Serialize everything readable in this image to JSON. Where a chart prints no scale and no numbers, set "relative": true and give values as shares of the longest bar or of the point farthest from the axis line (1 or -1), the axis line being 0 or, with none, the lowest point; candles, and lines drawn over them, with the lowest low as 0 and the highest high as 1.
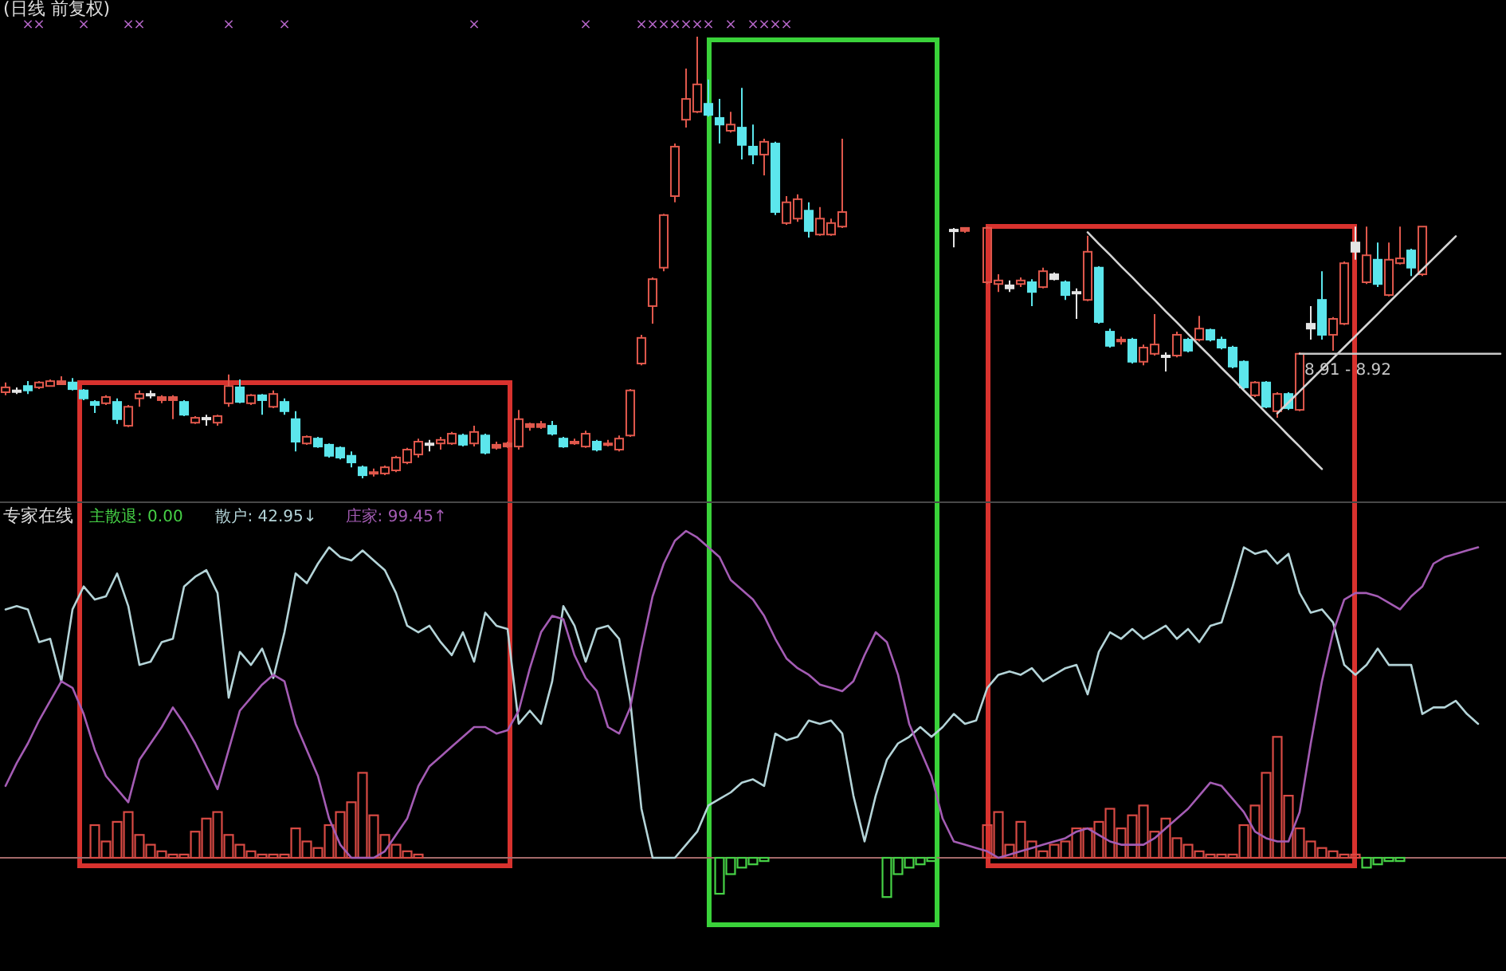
{
  "chart_data": [
    {
      "type": "candlestick",
      "title": "(日线 前复权)",
      "categories": [
        null,
        null,
        null,
        null,
        null,
        null,
        null,
        null,
        null,
        null,
        null,
        null,
        null,
        null,
        null,
        null,
        null,
        null,
        null,
        null,
        null,
        null,
        null,
        null,
        null,
        null,
        null,
        null,
        null,
        null,
        null,
        null,
        null,
        null,
        null,
        null,
        null,
        null,
        null,
        null,
        null,
        null,
        null,
        null,
        null,
        null,
        null,
        null,
        null,
        null,
        null,
        null,
        null,
        null,
        null,
        null,
        null,
        null,
        null,
        null,
        null,
        null,
        null,
        null,
        null,
        null,
        null,
        null,
        null,
        null,
        null,
        null,
        null,
        null,
        null,
        null,
        null,
        null,
        null,
        null,
        null,
        null,
        null,
        null,
        null,
        null,
        null,
        null,
        null,
        null,
        null,
        null,
        null,
        null,
        null,
        null,
        null,
        null,
        null,
        null,
        null,
        null,
        null,
        null,
        null,
        null,
        null,
        null,
        null,
        null,
        null,
        null,
        null,
        null,
        null,
        null,
        null,
        null,
        null,
        null,
        null,
        null,
        null,
        null,
        null,
        null,
        null,
        null,
        null,
        null,
        null,
        null,
        null,
        null,
        null
      ],
      "relative": true,
      "annotations": [
        "×",
        "×",
        "×",
        "×",
        "×",
        "×",
        "×",
        "×",
        "×",
        "×",
        "×",
        "×",
        "×",
        "×",
        "×",
        "×",
        "×",
        "×",
        "×",
        "×",
        "×"
      ],
      "ohlc": [
        [
          0.195,
          0.217,
          0.188,
          0.206
        ],
        [
          0.199,
          0.206,
          0.191,
          0.199
        ],
        [
          0.209,
          0.22,
          0.191,
          0.199
        ],
        [
          0.206,
          0.22,
          0.202,
          0.217
        ],
        [
          0.209,
          0.224,
          0.209,
          0.22
        ],
        [
          0.213,
          0.231,
          0.213,
          0.22
        ],
        [
          0.217,
          0.227,
          0.199,
          0.202
        ],
        [
          0.199,
          0.202,
          0.177,
          0.181
        ],
        [
          0.173,
          0.177,
          0.148,
          0.166
        ],
        [
          0.17,
          0.188,
          0.166,
          0.184
        ],
        [
          0.173,
          0.181,
          0.123,
          0.134
        ],
        [
          0.119,
          0.166,
          0.116,
          0.162
        ],
        [
          0.181,
          0.199,
          0.162,
          0.191
        ],
        [
          0.191,
          0.199,
          0.181,
          0.191
        ],
        [
          0.177,
          0.188,
          0.17,
          0.184
        ],
        [
          0.177,
          0.188,
          0.134,
          0.184
        ],
        [
          0.173,
          0.177,
          0.141,
          0.144
        ],
        [
          0.126,
          0.141,
          0.123,
          0.137
        ],
        [
          0.137,
          0.144,
          0.119,
          0.134
        ],
        [
          0.126,
          0.144,
          0.119,
          0.141
        ],
        [
          0.17,
          0.235,
          0.162,
          0.209
        ],
        [
          0.206,
          0.224,
          0.17,
          0.173
        ],
        [
          0.17,
          0.191,
          0.166,
          0.188
        ],
        [
          0.188,
          0.191,
          0.144,
          0.177
        ],
        [
          0.162,
          0.199,
          0.159,
          0.191
        ],
        [
          0.173,
          0.181,
          0.144,
          0.152
        ],
        [
          0.134,
          0.152,
          0.061,
          0.083
        ],
        [
          0.079,
          0.097,
          0.076,
          0.094
        ],
        [
          0.09,
          0.094,
          0.069,
          0.072
        ],
        [
          0.076,
          0.079,
          0.047,
          0.051
        ],
        [
          0.069,
          0.072,
          0.043,
          0.047
        ],
        [
          0.051,
          0.061,
          0.025,
          0.036
        ],
        [
          0.025,
          0.029,
          0,
          0.007
        ],
        [
          0.011,
          0.022,
          0.004,
          0.014
        ],
        [
          0.011,
          0.029,
          0.007,
          0.025
        ],
        [
          0.018,
          0.051,
          0.014,
          0.047
        ],
        [
          0.036,
          0.069,
          0.032,
          0.065
        ],
        [
          0.054,
          0.09,
          0.047,
          0.083
        ],
        [
          0.079,
          0.087,
          0.061,
          0.079
        ],
        [
          0.079,
          0.094,
          0.065,
          0.087
        ],
        [
          0.079,
          0.105,
          0.076,
          0.101
        ],
        [
          0.097,
          0.101,
          0.072,
          0.076
        ],
        [
          0.079,
          0.119,
          0.072,
          0.105
        ],
        [
          0.097,
          0.101,
          0.054,
          0.058
        ],
        [
          0.069,
          0.083,
          0.065,
          0.076
        ],
        [
          0.072,
          0.083,
          0.069,
          0.079
        ],
        [
          0.072,
          0.155,
          0.065,
          0.134
        ],
        [
          0.116,
          0.126,
          0.108,
          0.123
        ],
        [
          0.116,
          0.13,
          0.112,
          0.123
        ],
        [
          0.119,
          0.13,
          0.097,
          0.101
        ],
        [
          0.09,
          0.094,
          0.069,
          0.072
        ],
        [
          0.079,
          0.09,
          0.076,
          0.083
        ],
        [
          0.072,
          0.108,
          0.069,
          0.101
        ],
        [
          0.083,
          0.087,
          0.061,
          0.065
        ],
        [
          0.076,
          0.087,
          0.072,
          0.079
        ],
        [
          0.065,
          0.097,
          0.061,
          0.09
        ],
        [
          0.097,
          0.202,
          0.094,
          0.199
        ],
        [
          0.26,
          0.325,
          0.256,
          0.318
        ],
        [
          0.39,
          0.455,
          0.35,
          0.451
        ],
        [
          0.477,
          0.599,
          0.469,
          0.596
        ],
        [
          0.639,
          0.758,
          0.625,
          0.751
        ],
        [
          0.812,
          0.928,
          0.794,
          0.859
        ],
        [
          0.83,
          1,
          0.827,
          0.892
        ],
        [
          0.848,
          0.903,
          0.819,
          0.823
        ],
        [
          0.816,
          0.859,
          0.758,
          0.801
        ],
        [
          0.787,
          0.83,
          0.783,
          0.801
        ],
        [
          0.794,
          0.884,
          0.722,
          0.755
        ],
        [
          0.751,
          0.801,
          0.711,
          0.733
        ],
        [
          0.733,
          0.769,
          0.686,
          0.762
        ],
        [
          0.758,
          0.762,
          0.596,
          0.603
        ],
        [
          0.578,
          0.639,
          0.574,
          0.625
        ],
        [
          0.588,
          0.643,
          0.581,
          0.632
        ],
        [
          0.606,
          0.625,
          0.545,
          0.56
        ],
        [
          0.552,
          0.614,
          0.549,
          0.588
        ],
        [
          0.552,
          0.588,
          0.549,
          0.578
        ],
        [
          0.57,
          0.769,
          0.567,
          0.603
        ],
        null,
        null,
        null,
        null,
        null,
        null,
        null,
        null,
        null,
        [
          0.563,
          0.567,
          0.523,
          0.563
        ],
        [
          0.56,
          0.567,
          0.556,
          0.567
        ],
        null,
        [
          0.444,
          0.57,
          0.44,
          0.567
        ],
        [
          0.44,
          0.462,
          0.422,
          0.448
        ],
        [
          0.43,
          0.448,
          0.422,
          0.437
        ],
        [
          0.44,
          0.455,
          0.433,
          0.448
        ],
        [
          0.444,
          0.451,
          0.39,
          0.422
        ],
        [
          0.433,
          0.477,
          0.43,
          0.469
        ],
        [
          0.462,
          0.466,
          0.448,
          0.451
        ],
        [
          0.444,
          0.448,
          0.404,
          0.415
        ],
        [
          0.419,
          0.43,
          0.361,
          0.422
        ],
        [
          0.404,
          0.549,
          0.401,
          0.513
        ],
        [
          0.477,
          0.48,
          0.35,
          0.354
        ],
        [
          0.332,
          0.339,
          0.296,
          0.3
        ],
        [
          0.31,
          0.321,
          0.303,
          0.314
        ],
        [
          0.314,
          0.318,
          0.26,
          0.264
        ],
        [
          0.264,
          0.303,
          0.256,
          0.296
        ],
        [
          0.282,
          0.372,
          0.278,
          0.303
        ],
        [
          0.278,
          0.285,
          0.242,
          0.278
        ],
        [
          0.278,
          0.332,
          0.274,
          0.325
        ],
        [
          0.314,
          0.318,
          0.285,
          0.289
        ],
        [
          0.314,
          0.368,
          0.31,
          0.339
        ],
        [
          0.336,
          0.339,
          0.31,
          0.314
        ],
        [
          0.314,
          0.321,
          0.292,
          0.296
        ],
        [
          0.296,
          0.3,
          0.249,
          0.253
        ],
        [
          0.264,
          0.267,
          0.202,
          0.206
        ],
        [
          0.188,
          0.22,
          0.184,
          0.217
        ],
        [
          0.217,
          0.22,
          0.159,
          0.162
        ],
        [
          0.152,
          0.195,
          0.137,
          0.191
        ],
        [
          0.191,
          0.195,
          0.155,
          0.159
        ],
        [
          0.155,
          0.285,
          0.152,
          0.282
        ],
        [
          0.35,
          0.39,
          0.314,
          0.339
        ],
        [
          0.404,
          0.469,
          0.314,
          0.325
        ],
        [
          0.325,
          0.365,
          0.289,
          0.361
        ],
        [
          0.35,
          0.491,
          0.347,
          0.487
        ],
        [
          0.534,
          0.57,
          0.495,
          0.513
        ],
        [
          0.444,
          0.57,
          0.44,
          0.505
        ],
        [
          0.495,
          0.534,
          0.433,
          0.44
        ],
        [
          0.415,
          0.534,
          0.412,
          0.495
        ],
        [
          0.487,
          0.57,
          0.484,
          0.498
        ],
        [
          0.516,
          0.52,
          0.458,
          0.477
        ],
        [
          0.462,
          0.57,
          0.458,
          0.57
        ],
        null,
        null,
        null,
        null,
        null,
        null,
        null
      ],
      "colors": [
        "#e0584c",
        "#e4e4e4",
        "#5ce6ec",
        "#e0584c",
        "#e0584c",
        "#e0584c",
        "#5ce6ec",
        "#5ce6ec",
        "#5ce6ec",
        "#e0584c",
        "#5ce6ec",
        "#e0584c",
        "#e0584c",
        "#e4e4e4",
        "#e0584c",
        "#e0584c",
        "#5ce6ec",
        "#e0584c",
        "#e4e4e4",
        "#e0584c",
        "#e0584c",
        "#5ce6ec",
        "#e0584c",
        "#5ce6ec",
        "#e0584c",
        "#5ce6ec",
        "#5ce6ec",
        "#e0584c",
        "#5ce6ec",
        "#5ce6ec",
        "#5ce6ec",
        "#5ce6ec",
        "#5ce6ec",
        "#e0584c",
        "#e0584c",
        "#e0584c",
        "#e0584c",
        "#e0584c",
        "#e4e4e4",
        "#e0584c",
        "#e0584c",
        "#5ce6ec",
        "#e0584c",
        "#5ce6ec",
        "#e0584c",
        "#e0584c",
        "#e0584c",
        "#e0584c",
        "#e0584c",
        "#5ce6ec",
        "#5ce6ec",
        "#e0584c",
        "#e0584c",
        "#5ce6ec",
        "#e0584c",
        "#e0584c",
        "#e0584c",
        "#e0584c",
        "#e0584c",
        "#e0584c",
        "#e0584c",
        "#e0584c",
        "#e0584c",
        "#5ce6ec",
        "#5ce6ec",
        "#e0584c",
        "#5ce6ec",
        "#5ce6ec",
        "#e0584c",
        "#5ce6ec",
        "#e0584c",
        "#e0584c",
        "#5ce6ec",
        "#e0584c",
        "#e0584c",
        "#e0584c",
        null,
        null,
        null,
        null,
        null,
        null,
        null,
        null,
        null,
        "#e4e4e4",
        "#e0584c",
        null,
        "#e0584c",
        "#e0584c",
        "#e4e4e4",
        "#e0584c",
        "#5ce6ec",
        "#e0584c",
        "#e4e4e4",
        "#5ce6ec",
        "#e4e4e4",
        "#e0584c",
        "#5ce6ec",
        "#5ce6ec",
        "#e0584c",
        "#5ce6ec",
        "#e0584c",
        "#e0584c",
        "#e4e4e4",
        "#e0584c",
        "#5ce6ec",
        "#e0584c",
        "#5ce6ec",
        "#5ce6ec",
        "#5ce6ec",
        "#5ce6ec",
        "#e0584c",
        "#5ce6ec",
        "#e0584c",
        "#5ce6ec",
        "#e0584c",
        "#e4e4e4",
        "#5ce6ec",
        "#e0584c",
        "#e0584c",
        "#e4e4e4",
        "#e0584c",
        "#5ce6ec",
        "#e0584c",
        "#e0584c",
        "#5ce6ec",
        "#e0584c",
        null,
        null,
        null,
        null,
        null,
        null,
        null
      ],
      "series": [
        {
          "type": "line",
          "color": "#d4d4d4",
          "values": [
            null,
            null,
            null,
            null,
            null,
            null,
            null,
            null,
            null,
            null,
            null,
            null,
            null,
            null,
            null,
            null,
            null,
            null,
            null,
            null,
            null,
            null,
            null,
            null,
            null,
            null,
            null,
            null,
            null,
            null,
            null,
            null,
            null,
            null,
            null,
            null,
            null,
            null,
            null,
            null,
            null,
            null,
            null,
            null,
            null,
            null,
            null,
            null,
            null,
            null,
            null,
            null,
            null,
            null,
            null,
            null,
            null,
            null,
            null,
            null,
            null,
            null,
            null,
            null,
            null,
            null,
            null,
            null,
            null,
            null,
            null,
            null,
            null,
            null,
            null,
            null,
            null,
            null,
            null,
            null,
            null,
            null,
            null,
            null,
            null,
            null,
            null,
            null,
            null,
            null,
            null,
            null,
            null,
            null,
            null,
            null,
            null,
            0.557,
            0.531,
            0.506,
            0.48,
            0.455,
            0.429,
            0.404,
            0.378,
            0.353,
            0.327,
            0.301,
            0.276,
            0.25,
            0.225,
            0.199,
            0.174,
            0.148,
            0.123,
            0.097,
            0.072,
            0.046,
            0.021,
            null,
            null,
            null,
            null,
            null,
            null,
            null,
            null,
            null,
            null,
            null,
            null,
            null,
            null,
            null,
            null
          ]
        },
        {
          "type": "line",
          "color": "#d4d4d4",
          "values": [
            null,
            null,
            null,
            null,
            null,
            null,
            null,
            null,
            null,
            null,
            null,
            null,
            null,
            null,
            null,
            null,
            null,
            null,
            null,
            null,
            null,
            null,
            null,
            null,
            null,
            null,
            null,
            null,
            null,
            null,
            null,
            null,
            null,
            null,
            null,
            null,
            null,
            null,
            null,
            null,
            null,
            null,
            null,
            null,
            null,
            null,
            null,
            null,
            null,
            null,
            null,
            null,
            null,
            null,
            null,
            null,
            null,
            null,
            null,
            null,
            null,
            null,
            null,
            null,
            null,
            null,
            null,
            null,
            null,
            null,
            null,
            null,
            null,
            null,
            null,
            null,
            null,
            null,
            null,
            null,
            null,
            null,
            null,
            null,
            null,
            null,
            null,
            null,
            null,
            null,
            null,
            null,
            null,
            null,
            null,
            null,
            null,
            null,
            null,
            null,
            null,
            null,
            null,
            null,
            null,
            null,
            null,
            null,
            null,
            null,
            null,
            null,
            null,
            null,
            0.147,
            0.172,
            0.197,
            0.222,
            0.247,
            0.272,
            0.297,
            0.322,
            0.347,
            0.372,
            0.398,
            0.423,
            0.448,
            0.473,
            0.498,
            0.523,
            0.548,
            null,
            null,
            null,
            null
          ]
        },
        {
          "type": "line",
          "name": "8.91 - 8.92",
          "color": "#c8c8c8",
          "values": [
            null,
            null,
            null,
            null,
            null,
            null,
            null,
            null,
            null,
            null,
            null,
            null,
            null,
            null,
            null,
            null,
            null,
            null,
            null,
            null,
            null,
            null,
            null,
            null,
            null,
            null,
            null,
            null,
            null,
            null,
            null,
            null,
            null,
            null,
            null,
            null,
            null,
            null,
            null,
            null,
            null,
            null,
            null,
            null,
            null,
            null,
            null,
            null,
            null,
            null,
            null,
            null,
            null,
            null,
            null,
            null,
            null,
            null,
            null,
            null,
            null,
            null,
            null,
            null,
            null,
            null,
            null,
            null,
            null,
            null,
            null,
            null,
            null,
            null,
            null,
            null,
            null,
            null,
            null,
            null,
            null,
            null,
            null,
            null,
            null,
            null,
            null,
            null,
            null,
            null,
            null,
            null,
            null,
            null,
            null,
            null,
            null,
            null,
            null,
            null,
            null,
            null,
            null,
            null,
            null,
            null,
            null,
            null,
            null,
            null,
            null,
            null,
            null,
            null,
            null,
            null,
            0.282,
            0.282,
            0.282,
            0.282,
            0.282,
            0.282,
            0.282,
            0.282,
            0.282,
            0.282,
            0.282,
            0.282,
            0.282,
            0.282,
            0.282,
            0.282,
            0.282,
            0.282,
            0.282
          ]
        }
      ]
    },
    {
      "type": "line",
      "title": "专家在线",
      "categories": [
        null,
        null,
        null,
        null,
        null,
        null,
        null,
        null,
        null,
        null,
        null,
        null,
        null,
        null,
        null,
        null,
        null,
        null,
        null,
        null,
        null,
        null,
        null,
        null,
        null,
        null,
        null,
        null,
        null,
        null,
        null,
        null,
        null,
        null,
        null,
        null,
        null,
        null,
        null,
        null,
        null,
        null,
        null,
        null,
        null,
        null,
        null,
        null,
        null,
        null,
        null,
        null,
        null,
        null,
        null,
        null,
        null,
        null,
        null,
        null,
        null,
        null,
        null,
        null,
        null,
        null,
        null,
        null,
        null,
        null,
        null,
        null,
        null,
        null,
        null,
        null,
        null,
        null,
        null,
        null,
        null,
        null,
        null,
        null,
        null,
        null,
        null,
        null,
        null,
        null,
        null,
        null,
        null,
        null,
        null,
        null,
        null,
        null,
        null,
        null,
        null,
        null,
        null,
        null,
        null,
        null,
        null,
        null,
        null,
        null,
        null,
        null,
        null,
        null,
        null,
        null,
        null,
        null,
        null,
        null,
        null,
        null,
        null,
        null,
        null,
        null,
        null,
        null,
        null,
        null,
        null,
        null,
        null,
        null,
        null
      ],
      "relative": true,
      "legend": "top left",
      "ref_lines": [
        {
          "axis": "y",
          "value": 0,
          "color": "#a46a6a"
        }
      ],
      "series": [
        {
          "type": "bar",
          "color": "#d84a44",
          "values": [
            null,
            null,
            null,
            null,
            null,
            null,
            null,
            null,
            0.1,
            0.05,
            0.11,
            0.14,
            0.07,
            0.04,
            0.02,
            0.01,
            0.01,
            0.08,
            0.12,
            0.14,
            0.07,
            0.04,
            0.02,
            0.01,
            0.01,
            0.01,
            0.09,
            0.05,
            0.03,
            0.1,
            0.14,
            0.17,
            0.26,
            0.13,
            0.07,
            0.04,
            0.02,
            0.01,
            null,
            null,
            null,
            null,
            null,
            null,
            null,
            null,
            null,
            null,
            null,
            null,
            null,
            null,
            null,
            null,
            null,
            null,
            null,
            null,
            null,
            null,
            null,
            null,
            null,
            null,
            null,
            null,
            null,
            null,
            null,
            null,
            null,
            null,
            null,
            null,
            null,
            null,
            null,
            null,
            null,
            null,
            null,
            null,
            null,
            null,
            null,
            null,
            null,
            null,
            0.1,
            0.14,
            0.04,
            0.11,
            0.05,
            0.02,
            0.04,
            0.05,
            0.09,
            0.09,
            0.11,
            0.15,
            0.09,
            0.13,
            0.16,
            0.08,
            0.12,
            0.06,
            0.04,
            0.02,
            0.01,
            0.01,
            0.01,
            0.1,
            0.16,
            0.26,
            0.37,
            0.19,
            0.09,
            0.05,
            0.03,
            0.02,
            0.01,
            0.01,
            null,
            null,
            null,
            null,
            null,
            null,
            null,
            null,
            null,
            null,
            null,
            null,
            null
          ]
        },
        {
          "type": "bar",
          "name": "主散退: 0.00",
          "color": "#46d246",
          "values": [
            null,
            null,
            null,
            null,
            null,
            null,
            null,
            null,
            null,
            null,
            null,
            null,
            null,
            null,
            null,
            null,
            null,
            null,
            null,
            null,
            null,
            null,
            null,
            null,
            null,
            null,
            null,
            null,
            null,
            null,
            null,
            null,
            null,
            null,
            null,
            null,
            null,
            null,
            null,
            null,
            null,
            null,
            null,
            null,
            null,
            null,
            null,
            null,
            null,
            null,
            null,
            null,
            null,
            null,
            null,
            null,
            null,
            null,
            null,
            null,
            null,
            null,
            null,
            null,
            -0.11,
            -0.05,
            -0.03,
            -0.02,
            -0.01,
            null,
            null,
            null,
            null,
            null,
            null,
            null,
            null,
            null,
            null,
            -0.12,
            -0.05,
            -0.03,
            -0.02,
            -0.01,
            null,
            null,
            null,
            null,
            null,
            null,
            null,
            null,
            null,
            null,
            null,
            null,
            null,
            null,
            null,
            null,
            null,
            null,
            null,
            null,
            null,
            null,
            null,
            null,
            null,
            null,
            null,
            null,
            null,
            null,
            null,
            null,
            null,
            null,
            null,
            null,
            null,
            null,
            -0.03,
            -0.02,
            -0.01,
            -0.01,
            null,
            null,
            null,
            null,
            null,
            null,
            null,
            null,
            null
          ]
        },
        {
          "type": "line",
          "name": "散户: 42.95↓",
          "color": "#b4d4d8",
          "values": [
            0.76,
            0.77,
            0.76,
            0.66,
            0.67,
            0.54,
            0.76,
            0.83,
            0.79,
            0.8,
            0.87,
            0.77,
            0.59,
            0.6,
            0.66,
            0.67,
            0.83,
            0.86,
            0.88,
            0.81,
            0.49,
            0.63,
            0.59,
            0.64,
            0.55,
            0.69,
            0.87,
            0.84,
            0.9,
            0.95,
            0.92,
            0.91,
            0.94,
            0.91,
            0.88,
            0.81,
            0.71,
            0.69,
            0.71,
            0.66,
            0.62,
            0.69,
            0.6,
            0.75,
            0.71,
            0.7,
            0.41,
            0.45,
            0.41,
            0.54,
            0.77,
            0.71,
            0.6,
            0.7,
            0.71,
            0.67,
            0.48,
            0.15,
            0,
            0,
            0,
            0.04,
            0.08,
            0.16,
            0.18,
            0.2,
            0.23,
            0.24,
            0.22,
            0.38,
            0.36,
            0.37,
            0.42,
            0.41,
            0.42,
            0.38,
            0.19,
            0.05,
            0.19,
            0.3,
            0.35,
            0.37,
            0.4,
            0.37,
            0.4,
            0.44,
            0.41,
            0.42,
            0.52,
            0.56,
            0.57,
            0.56,
            0.58,
            0.54,
            0.56,
            0.58,
            0.59,
            0.5,
            0.63,
            0.69,
            0.67,
            0.7,
            0.67,
            0.69,
            0.71,
            0.67,
            0.7,
            0.66,
            0.71,
            0.72,
            0.83,
            0.95,
            0.93,
            0.94,
            0.9,
            0.93,
            0.81,
            0.75,
            0.76,
            0.72,
            0.59,
            0.56,
            0.59,
            0.64,
            0.59,
            0.59,
            0.59,
            0.44,
            0.46,
            0.46,
            0.48,
            0.44,
            0.41,
            null,
            null
          ]
        },
        {
          "type": "line",
          "name": "庄家: 99.45↑",
          "color": "#a45cb4",
          "values": [
            0.22,
            0.29,
            0.35,
            0.42,
            0.48,
            0.54,
            0.52,
            0.44,
            0.33,
            0.25,
            0.21,
            0.17,
            0.3,
            0.35,
            0.4,
            0.46,
            0.41,
            0.35,
            0.28,
            0.21,
            0.33,
            0.45,
            0.49,
            0.53,
            0.56,
            0.54,
            0.41,
            0.33,
            0.25,
            0.12,
            0.04,
            0,
            0,
            0,
            0.02,
            0.07,
            0.12,
            0.22,
            0.28,
            0.31,
            0.34,
            0.37,
            0.4,
            0.4,
            0.38,
            0.39,
            0.45,
            0.58,
            0.69,
            0.74,
            0.73,
            0.62,
            0.55,
            0.51,
            0.4,
            0.38,
            0.46,
            0.64,
            0.8,
            0.9,
            0.97,
            1,
            0.98,
            0.95,
            0.92,
            0.85,
            0.82,
            0.79,
            0.74,
            0.67,
            0.61,
            0.58,
            0.56,
            0.53,
            0.52,
            0.51,
            0.54,
            0.62,
            0.69,
            0.66,
            0.56,
            0.41,
            0.33,
            0.25,
            0.12,
            0.05,
            0.04,
            0.03,
            0.02,
            0,
            0.01,
            0.02,
            0.03,
            0.04,
            0.05,
            0.06,
            0.08,
            0.09,
            0.07,
            0.05,
            0.04,
            0.04,
            0.04,
            0.06,
            0.09,
            0.12,
            0.15,
            0.19,
            0.23,
            0.22,
            0.18,
            0.14,
            0.08,
            0.06,
            0.05,
            0.05,
            0.14,
            0.35,
            0.54,
            0.69,
            0.79,
            0.81,
            0.81,
            0.8,
            0.78,
            0.76,
            0.8,
            0.83,
            0.9,
            0.92,
            0.93,
            0.94,
            0.95,
            null,
            null
          ]
        }
      ]
    }
  ]
}
